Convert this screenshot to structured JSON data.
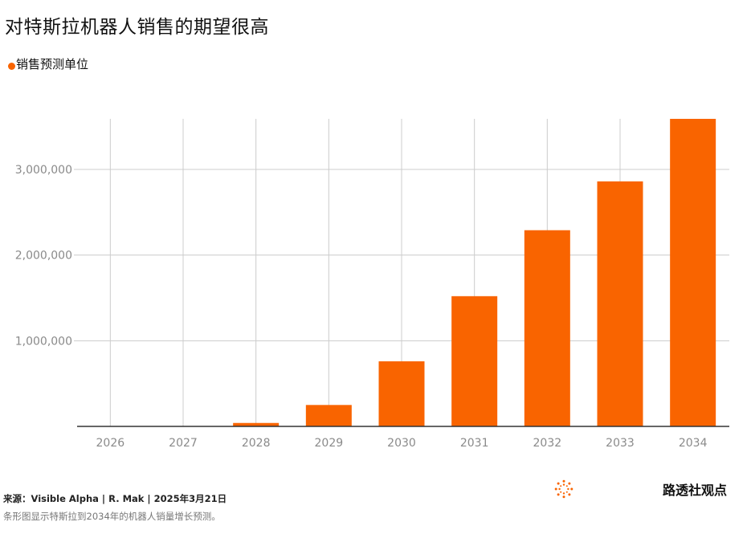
{
  "title": "对特斯拉机器人销售的期望很高",
  "source": "来源：Visible Alpha | R. Mak | 2025年3月21日",
  "caption": "条形图显示特斯拉到2034年的机器人销量增长预测。",
  "brand": {
    "name": "路透社观点",
    "icon": "reuters-logo-icon"
  },
  "colors": {
    "bar": "#f96400",
    "grid": "#cccccc",
    "axis": "#333333",
    "tick_label": "#8a8a8a"
  },
  "chart_data": {
    "type": "bar",
    "categories": [
      "2026",
      "2027",
      "2028",
      "2029",
      "2030",
      "2031",
      "2032",
      "2033",
      "2034"
    ],
    "series": [
      {
        "name": "销售预测单位",
        "values": [
          0,
          0,
          40000,
          250000,
          760000,
          1520000,
          2290000,
          2860000,
          3590000
        ]
      }
    ],
    "y_ticks": [
      1000000,
      2000000,
      3000000
    ],
    "y_tick_labels": [
      "1,000,000",
      "2,000,000",
      "3,000,000"
    ],
    "ylim": [
      0,
      3590000
    ],
    "xlabel": "",
    "ylabel": "",
    "grid": true,
    "legend": "top-left"
  }
}
